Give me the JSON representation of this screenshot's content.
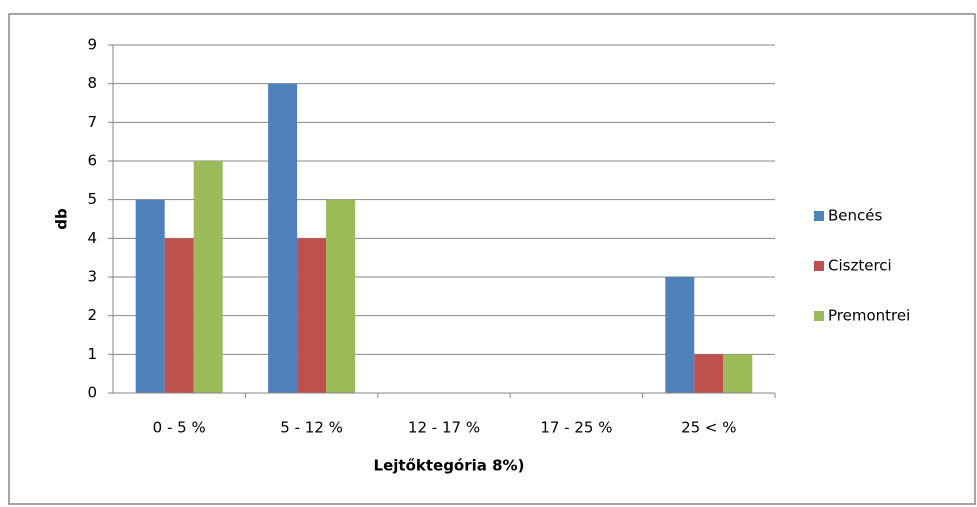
{
  "chart_data": {
    "type": "bar",
    "categories": [
      "0 - 5 %",
      "5 - 12 %",
      "12 - 17 %",
      "17 - 25 %",
      "25 < %"
    ],
    "series": [
      {
        "name": "Bencés",
        "color": "#4f81bd",
        "values": [
          5,
          8,
          0,
          0,
          3
        ]
      },
      {
        "name": "Ciszterci",
        "color": "#c0504d",
        "values": [
          4,
          4,
          0,
          0,
          1
        ]
      },
      {
        "name": "Premontrei",
        "color": "#9bbb59",
        "values": [
          6,
          5,
          0,
          0,
          1
        ]
      }
    ],
    "xlabel": "Lejtőktegória 8%)",
    "ylabel": "db",
    "ylim": [
      0,
      9
    ],
    "yticks": [
      0,
      1,
      2,
      3,
      4,
      5,
      6,
      7,
      8,
      9
    ],
    "grid": true,
    "legend": "right"
  }
}
